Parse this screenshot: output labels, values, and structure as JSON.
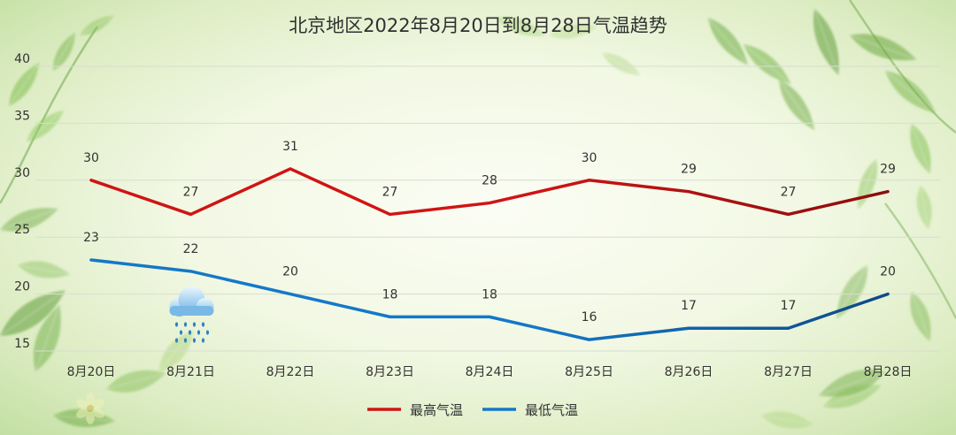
{
  "chart_data": {
    "type": "line",
    "title": "北京地区2022年8月20日到8月28日气温趋势",
    "categories": [
      "8月20日",
      "8月21日",
      "8月22日",
      "8月23日",
      "8月24日",
      "8月25日",
      "8月26日",
      "8月27日",
      "8月28日"
    ],
    "ylim": [
      15,
      40
    ],
    "yticks": [
      "15",
      "20",
      "25",
      "30",
      "35",
      "40"
    ],
    "grid": true,
    "legend_position": "bottom-center",
    "series": [
      {
        "name": "最高气温",
        "values": [
          30,
          27,
          31,
          27,
          28,
          30,
          29,
          27,
          29
        ],
        "color": "#d01414",
        "color_end": "#8a0e0e"
      },
      {
        "name": "最低气温",
        "values": [
          23,
          22,
          20,
          18,
          18,
          16,
          17,
          17,
          20
        ],
        "color": "#1478c8",
        "color_end": "#0e4a86"
      }
    ],
    "weather_icon": {
      "name": "rain-cloud-icon",
      "category": "8月21日"
    }
  }
}
